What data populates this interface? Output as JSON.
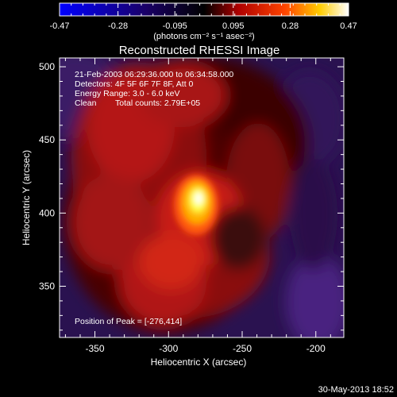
{
  "chart_data": {
    "type": "heatmap",
    "title": "Reconstructed RHESSI Image",
    "xlabel": "Heliocentric X (arcsec)",
    "ylabel": "Heliocentric Y (arcsec)",
    "xlim": [
      -374,
      -181
    ],
    "ylim": [
      315,
      506
    ],
    "x_ticks": [
      "-350",
      "-300",
      "-250",
      "-200"
    ],
    "x_tick_values": [
      -350,
      -300,
      -250,
      -200
    ],
    "y_ticks": [
      "500",
      "450",
      "400",
      "350"
    ],
    "y_tick_values": [
      500,
      450,
      400,
      350
    ],
    "colorbar": {
      "min": -0.47,
      "max": 0.47,
      "tick_labels": [
        "-0.47",
        "-0.28",
        "-0.095",
        "0.095",
        "0.28",
        "0.47"
      ],
      "tick_values": [
        -0.47,
        -0.28,
        -0.095,
        0.095,
        0.28,
        0.47
      ],
      "units_label": "(photons cm⁻² s⁻¹ asec⁻²)",
      "colors": [
        "#0000ff",
        "#000000",
        "#cc0000",
        "#ff6600",
        "#ffff00",
        "#ffffff"
      ]
    },
    "annotations": {
      "time_range": "21-Feb-2003 06:29:36.000 to 06:34:58.000",
      "detectors": "Detectors: 4F 5F 6F 7F 8F, Att 0",
      "energy": "Energy Range: 3.0 - 6.0 keV",
      "clean": "Clean",
      "counts": "Total counts: 2.79E+05",
      "peak": "Position of Peak = [-276,414]"
    },
    "peak_position": [
      -276,
      414
    ],
    "peak_value": 0.47
  },
  "timestamp": "30-May-2013 18:52"
}
